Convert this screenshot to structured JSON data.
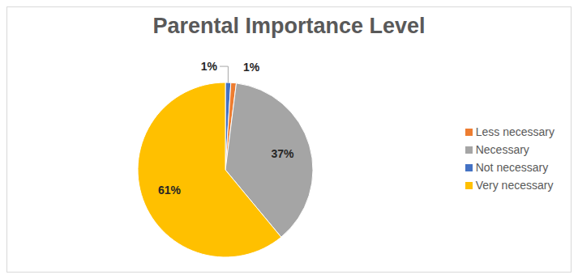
{
  "chart_data": {
    "type": "pie",
    "title": "Parental Importance Level",
    "categories": [
      "Not necessary",
      "Less necessary",
      "Necessary",
      "Very necessary"
    ],
    "values": [
      1,
      1,
      37,
      61
    ],
    "value_labels": [
      "1%",
      "1%",
      "37%",
      "61%"
    ],
    "colors": [
      "#4472c4",
      "#ed7d31",
      "#a5a5a5",
      "#ffc000"
    ],
    "data_labels": true,
    "legend": "right"
  }
}
